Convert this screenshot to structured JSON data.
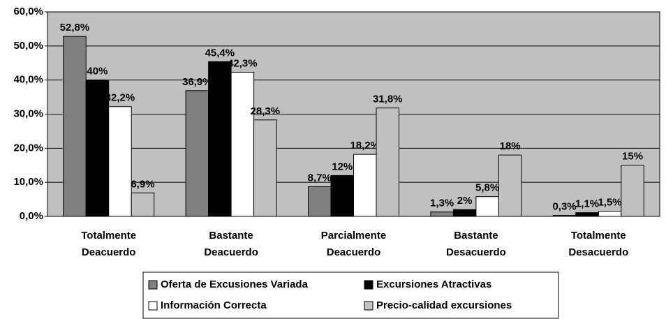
{
  "chart_data": {
    "type": "bar",
    "categories": [
      "Totalmente Deacuerdo",
      "Bastante Deacuerdo",
      "Parcialmente Deacuerdo",
      "Bastante Desacuerdo",
      "Totalmente Desacuerdo"
    ],
    "series": [
      {
        "name": "Oferta de Excusiones Variada",
        "color": "#808080",
        "values": [
          52.8,
          36.9,
          8.7,
          1.3,
          0.3
        ],
        "value_labels": [
          "52,8%",
          "36,9%",
          "8,7%",
          "1,3%",
          "0,3%"
        ]
      },
      {
        "name": "Excursiones Atractivas",
        "color": "#000000",
        "values": [
          40,
          45.4,
          12,
          2,
          1.1
        ],
        "value_labels": [
          "40%",
          "45,4%",
          "12%",
          "2%",
          "1,1%"
        ]
      },
      {
        "name": "Información Correcta",
        "color": "#ffffff",
        "values": [
          32.2,
          42.3,
          18.2,
          5.8,
          1.5
        ],
        "value_labels": [
          "32,2%",
          "42,3%",
          "18,2%",
          "5,8%",
          "1,5%"
        ]
      },
      {
        "name": "Precio-calidad excursiones",
        "color": "#c0c0c0",
        "values": [
          6.9,
          28.3,
          31.8,
          18,
          15
        ],
        "value_labels": [
          "6,9%",
          "28,3%",
          "31,8%",
          "18%",
          "15%"
        ]
      }
    ],
    "ylim": [
      0,
      60
    ],
    "yticks": [
      {
        "value": 0,
        "label": "0,0%"
      },
      {
        "value": 10,
        "label": "10,0%"
      },
      {
        "value": 20,
        "label": "20,0%"
      },
      {
        "value": 30,
        "label": "30,0%"
      },
      {
        "value": 40,
        "label": "40,0%"
      },
      {
        "value": 50,
        "label": "50,0%"
      },
      {
        "value": 60,
        "label": "60,0%"
      }
    ],
    "grid": true,
    "legend": "bottom"
  }
}
